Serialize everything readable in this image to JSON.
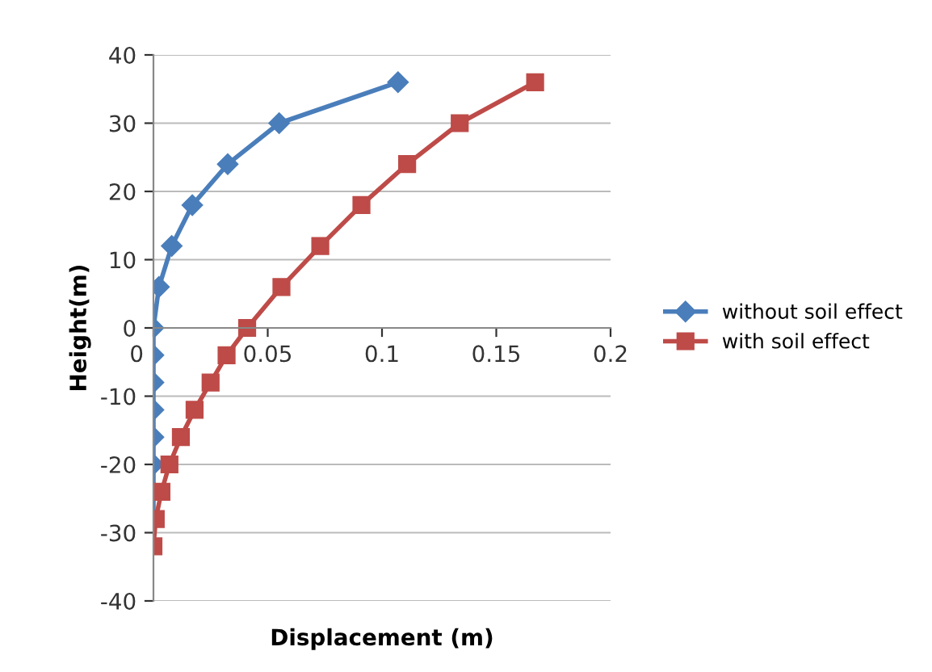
{
  "chart_data": {
    "type": "line",
    "xlabel": "Displacement (m)",
    "ylabel": "Height(m)",
    "xlim": [
      0,
      0.2
    ],
    "xticks": [
      0,
      0.05,
      0.1,
      0.15,
      0.2
    ],
    "ylim": [
      -40,
      40
    ],
    "yticks": [
      -40,
      -30,
      -20,
      -10,
      0,
      10,
      20,
      30,
      40
    ],
    "grid": "y",
    "legend": "right",
    "line_style": "solid",
    "series": [
      {
        "name": "without soil effect",
        "color": "#4a7ebb",
        "marker": "diamond",
        "x": [
          0.107,
          0.055,
          0.0325,
          0.017,
          0.008,
          0.0024,
          0,
          0,
          0,
          0,
          0,
          0,
          0,
          0
        ],
        "values": [
          36,
          30,
          24,
          18,
          12,
          6,
          0,
          -4,
          -8,
          -12,
          -16,
          -20,
          -24,
          -28
        ]
      },
      {
        "name": "with soil effect",
        "color": "#be4b48",
        "marker": "square",
        "x": [
          0.167,
          0.134,
          0.111,
          0.091,
          0.073,
          0.056,
          0.041,
          0.032,
          0.025,
          0.018,
          0.012,
          0.007,
          0.0035,
          0.001,
          0
        ],
        "values": [
          36,
          30,
          24,
          18,
          12,
          6,
          0,
          -4,
          -8,
          -12,
          -16,
          -20,
          -24,
          -28,
          -32
        ]
      }
    ]
  }
}
